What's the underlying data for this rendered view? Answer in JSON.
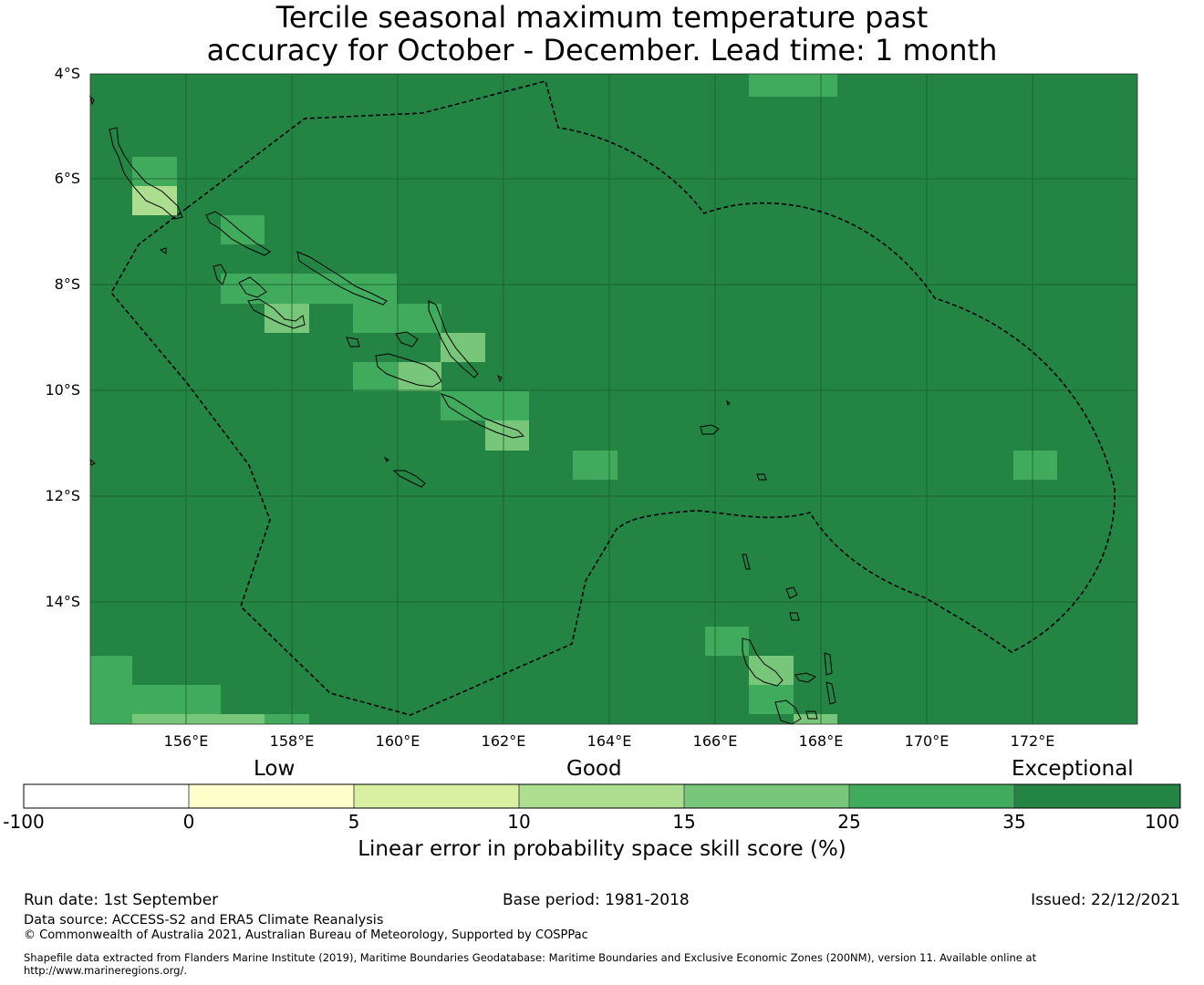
{
  "title": {
    "line1": "Tercile seasonal maximum temperature past",
    "line2": "accuracy for October - December. Lead time: 1 month"
  },
  "map": {
    "lat_labels": [
      "4°S",
      "6°S",
      "8°S",
      "10°S",
      "12°S",
      "14°S"
    ],
    "lon_labels": [
      "156°E",
      "158°E",
      "160°E",
      "162°E",
      "164°E",
      "166°E",
      "168°E",
      "170°E",
      "172°E"
    ],
    "extent": {
      "lon_min": 154.2,
      "lon_max": 174.0,
      "lat_max": -4.0,
      "lat_min": -16.3
    },
    "background_class": "exceptional",
    "eez_boundary_style": "dashed"
  },
  "legend": {
    "category_labels": [
      "Low",
      "Good",
      "Exceptional"
    ],
    "ticks": [
      "-100",
      "0",
      "5",
      "10",
      "15",
      "25",
      "35",
      "100"
    ],
    "colors": [
      "#ffffff",
      "#ffffcc",
      "#d9f0a3",
      "#addd8e",
      "#78c679",
      "#41ab5d",
      "#238443"
    ],
    "title": "Linear error in probability space skill score (%)"
  },
  "footer": {
    "run_date": "Run date: 1st September",
    "base_period": "Base period: 1981-2018",
    "issued": "Issued: 22/12/2021",
    "data_source": "Data source: ACCESS-S2 and ERA5 Climate Reanalysis",
    "copyright": "© Commonwealth of Australia 2021, Australian Bureau of Meteorology, Supported by COSPPac",
    "shapefile_line1": "Shapefile data extracted from Flanders Marine Institute (2019), Maritime Boundaries Geodatabase: Maritime Boundaries and Exclusive Economic Zones (200NM), version 11. Available online at",
    "shapefile_line2": "http://www.marineregions.org/."
  }
}
